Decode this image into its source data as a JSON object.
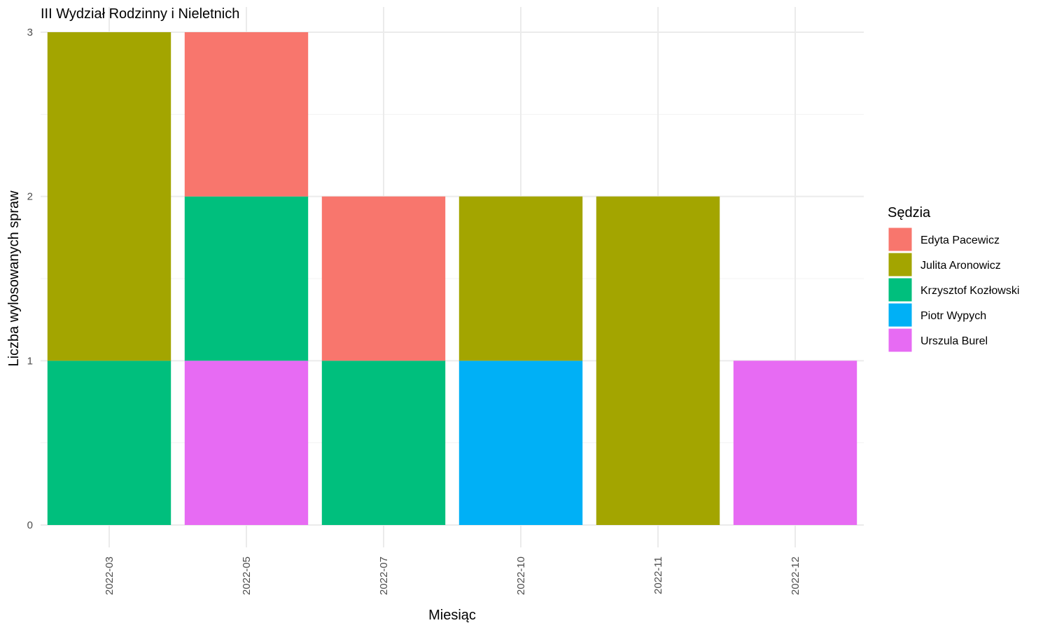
{
  "chart_data": {
    "type": "bar",
    "stacked": true,
    "title": "III Wydział Rodzinny i Nieletnich",
    "xlabel": "Miesiąc",
    "ylabel": "Liczba wylosowanych spraw",
    "categories": [
      "2022-03",
      "2022-05",
      "2022-07",
      "2022-10",
      "2022-11",
      "2022-12"
    ],
    "yticks": [
      "0",
      "1",
      "2",
      "3"
    ],
    "ylim": [
      0,
      3
    ],
    "grid": true,
    "legend": {
      "title": "Sędzia",
      "position": "right"
    },
    "series": [
      {
        "name": "Edyta Pacewicz",
        "color": "#F8766D",
        "values": [
          0,
          1,
          1,
          0,
          0,
          0
        ]
      },
      {
        "name": "Julita Aronowicz",
        "color": "#A3A500",
        "values": [
          2,
          0,
          0,
          1,
          2,
          0
        ]
      },
      {
        "name": "Krzysztof Kozłowski",
        "color": "#00BF7D",
        "values": [
          1,
          1,
          1,
          0,
          0,
          0
        ]
      },
      {
        "name": "Piotr Wypych",
        "color": "#00B0F6",
        "values": [
          0,
          0,
          0,
          1,
          0,
          0
        ]
      },
      {
        "name": "Urszula Burel",
        "color": "#E76BF3",
        "values": [
          0,
          1,
          0,
          0,
          0,
          1
        ]
      }
    ]
  }
}
